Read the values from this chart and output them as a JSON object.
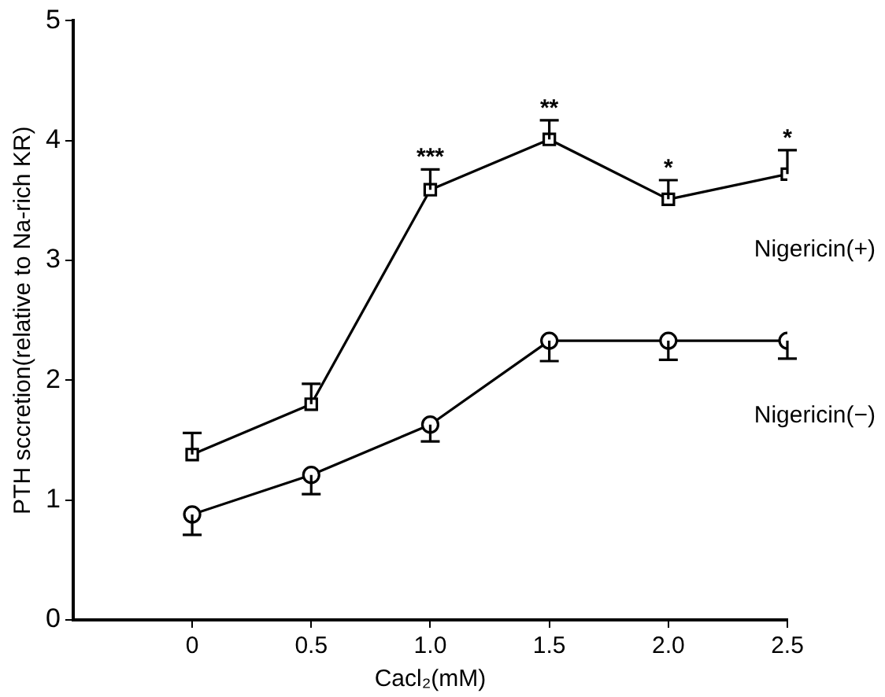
{
  "chart_data": {
    "type": "line",
    "xlabel": "Cacl₂(mM)",
    "ylabel": "PTH sccretion(relative to Na-rich KR)",
    "x": [
      0,
      0.5,
      1.0,
      1.5,
      2.0,
      2.5
    ],
    "xlim": [
      -0.5,
      2.5
    ],
    "xticks": [
      0,
      0.5,
      {
        "value": 1,
        "label": "1.0"
      },
      1.5,
      {
        "value": 2,
        "label": "2.0"
      },
      2.5
    ],
    "ylim": [
      0,
      5
    ],
    "yticks": [
      0,
      1,
      2,
      3,
      4,
      5
    ],
    "grid": false,
    "legend": false,
    "line_style": "solid",
    "series": [
      {
        "name": "Nigericin(+)",
        "color": "#000000",
        "marker": "square",
        "values": [
          1.38,
          1.8,
          3.59,
          4.01,
          3.51,
          3.72
        ],
        "errors": [
          [
            1.38,
            1.56
          ],
          [
            1.8,
            1.97
          ],
          [
            3.59,
            3.76
          ],
          [
            4.01,
            4.17
          ],
          [
            3.51,
            3.67
          ],
          [
            3.72,
            3.92
          ]
        ]
      },
      {
        "name": "Nigericin(−)",
        "color": "#000000",
        "marker": "circle",
        "values": [
          0.88,
          1.21,
          1.63,
          2.33,
          2.33,
          2.33
        ],
        "errors": [
          [
            0.71,
            0.88
          ],
          [
            1.05,
            1.21
          ],
          [
            1.49,
            1.63
          ],
          [
            2.16,
            2.33
          ],
          [
            2.17,
            2.33
          ],
          [
            2.18,
            2.33
          ]
        ]
      }
    ],
    "annotations": [
      {
        "text": "***",
        "x": 1.0,
        "y": 3.76
      },
      {
        "text": "**",
        "x": 1.5,
        "y": 4.17
      },
      {
        "text": "*",
        "x": 2.0,
        "y": 3.67
      },
      {
        "text": "*",
        "x": 2.5,
        "y": 3.92
      }
    ]
  }
}
